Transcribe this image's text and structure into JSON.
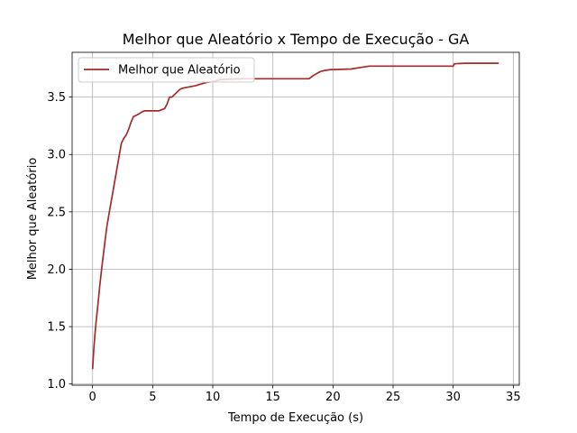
{
  "chart_data": {
    "type": "line",
    "title": "Melhor que Aleatório x Tempo de Execução - GA",
    "xlabel": "Tempo de Execução (s)",
    "ylabel": "Melhor que Aleatório",
    "xlim": [
      -1.7,
      35.5
    ],
    "ylim": [
      0.99,
      3.89
    ],
    "xticks": [
      0,
      5,
      10,
      15,
      20,
      25,
      30,
      35
    ],
    "yticks": [
      1.0,
      1.5,
      2.0,
      2.5,
      3.0,
      3.5
    ],
    "xtick_labels": [
      "0",
      "5",
      "10",
      "15",
      "20",
      "25",
      "30",
      "35"
    ],
    "ytick_labels": [
      "1.0",
      "1.5",
      "2.0",
      "2.5",
      "3.0",
      "3.5"
    ],
    "grid": true,
    "legend_position": "top-left",
    "colors": {
      "line": "#a52a2a",
      "grid": "#b0b0b0",
      "axes": "#000000"
    },
    "series": [
      {
        "name": "Melhor que Aleatório",
        "x": [
          0.0,
          0.1,
          0.2,
          0.3,
          0.45,
          0.6,
          0.75,
          0.9,
          1.05,
          1.2,
          1.4,
          1.6,
          1.8,
          2.0,
          2.2,
          2.4,
          2.6,
          2.8,
          3.0,
          3.2,
          3.4,
          3.6,
          3.8,
          4.1,
          4.3,
          4.5,
          5.0,
          5.5,
          6.0,
          6.2,
          6.4,
          6.6,
          6.9,
          7.1,
          7.3,
          7.6,
          8.6,
          8.9,
          9.6,
          10.2,
          10.5,
          11.0,
          12.5,
          15.0,
          18.0,
          18.4,
          18.9,
          19.2,
          19.8,
          20.0,
          21.5,
          23.0,
          25.0,
          28.0,
          30.0,
          30.1,
          31.0,
          33.8
        ],
        "y": [
          1.13,
          1.3,
          1.43,
          1.55,
          1.7,
          1.86,
          2.0,
          2.13,
          2.26,
          2.38,
          2.5,
          2.62,
          2.74,
          2.86,
          2.98,
          3.1,
          3.14,
          3.17,
          3.22,
          3.28,
          3.33,
          3.34,
          3.35,
          3.37,
          3.38,
          3.38,
          3.38,
          3.38,
          3.4,
          3.44,
          3.5,
          3.5,
          3.53,
          3.55,
          3.57,
          3.58,
          3.6,
          3.61,
          3.63,
          3.64,
          3.65,
          3.655,
          3.66,
          3.66,
          3.66,
          3.69,
          3.72,
          3.73,
          3.74,
          3.74,
          3.745,
          3.77,
          3.77,
          3.77,
          3.77,
          3.79,
          3.795,
          3.795
        ]
      }
    ]
  }
}
